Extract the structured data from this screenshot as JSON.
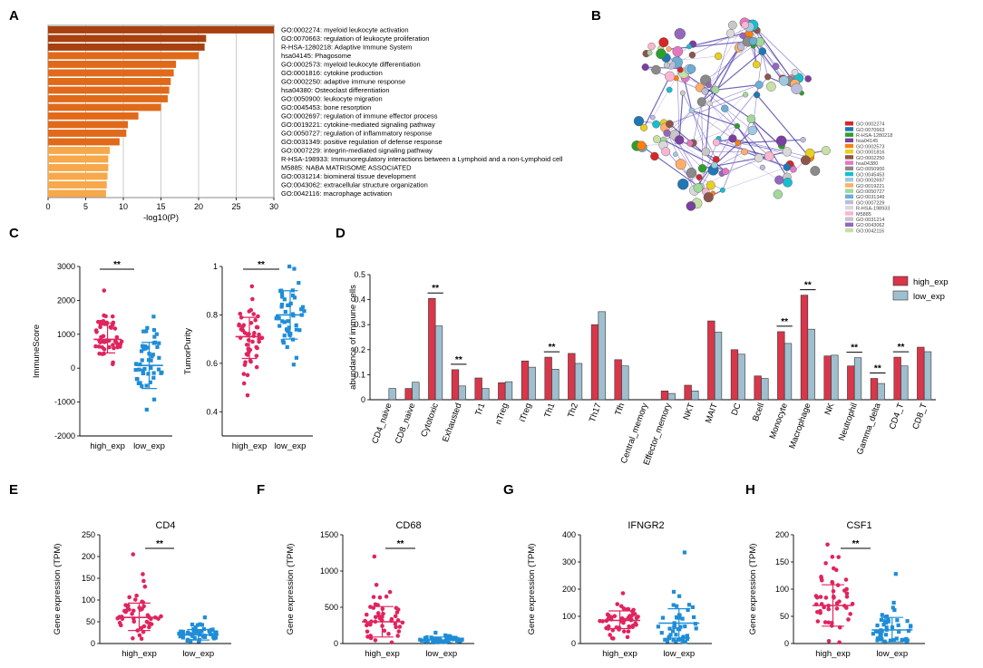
{
  "panels": {
    "A": "A",
    "B": "B",
    "C": "C",
    "D": "D",
    "E": "E",
    "F": "F",
    "G": "G",
    "H": "H"
  },
  "colors": {
    "bar_dark": "#a8400f",
    "bar_mid": "#e06a1a",
    "bar_light": "#f7a84a",
    "high": "#e0245e",
    "low": "#1f8dd6",
    "d_high": "#d9364a",
    "d_low": "#9fbfcf"
  },
  "significance_label": "**",
  "chart_data": [
    {
      "id": "A",
      "type": "bar",
      "orientation": "horizontal",
      "xlabel": "-log10(P)",
      "xlim": [
        0,
        30
      ],
      "xticks": [
        0,
        5,
        10,
        15,
        20,
        25,
        30
      ],
      "categories": [
        "GO:0002274: myeloid leukocyte activation",
        "GO:0070663: regulation of leukocyte proliferation",
        "R-HSA-1280218: Adaptive Immune System",
        "hsa04145: Phagosome",
        "GO:0002573: myeloid leukocyte differentiation",
        "GO:0001816: cytokine production",
        "GO:0002250: adaptive immune response",
        "hsa04380: Osteoclast differentiation",
        "GO:0050900: leukocyte migration",
        "GO:0045453: bone resorption",
        "GO:0002697: regulation of immune effector process",
        "GO:0019221: cytokine-mediated signaling pathway",
        "GO:0050727: regulation of inflammatory response",
        "GO:0031349: positive regulation of defense response",
        "GO:0007229: integrin-mediated signaling pathway",
        "R-HSA-198933: Immunoregulatory interactions between a Lymphoid and a non-Lymphoid cell",
        "M5885: NABA MATRISOME ASSOCIATED",
        "GO:0031214: biomineral tissue development",
        "GO:0043062: extracellular structure organization",
        "GO:0042116: macrophage activation"
      ],
      "values": [
        30,
        21,
        20.8,
        20,
        17,
        16.7,
        16.3,
        16.1,
        15.9,
        15,
        12,
        10.6,
        10.4,
        9.5,
        8.2,
        8.0,
        8.0,
        7.9,
        7.8,
        7.7
      ]
    },
    {
      "id": "B",
      "type": "network",
      "legend": [
        {
          "label": "GO:0002274",
          "color": "#d62728"
        },
        {
          "label": "GO:0070663",
          "color": "#1f77b4"
        },
        {
          "label": "R-HSA-1280218",
          "color": "#2ca02c"
        },
        {
          "label": "hsa04145",
          "color": "#7b3fa0"
        },
        {
          "label": "GO:0002573",
          "color": "#ff7f0e"
        },
        {
          "label": "GO:0001816",
          "color": "#e8d020"
        },
        {
          "label": "GO:0002250",
          "color": "#8c564b"
        },
        {
          "label": "hsa04380",
          "color": "#e377c2"
        },
        {
          "label": "GO:0050900",
          "color": "#8a8a8a"
        },
        {
          "label": "GO:0045453",
          "color": "#17becf"
        },
        {
          "label": "GO:0002697",
          "color": "#9ecae1"
        },
        {
          "label": "GO:0019221",
          "color": "#fdae6b"
        },
        {
          "label": "GO:0050727",
          "color": "#a1d99b"
        },
        {
          "label": "GO:0031349",
          "color": "#6baed6"
        },
        {
          "label": "GO:0007229",
          "color": "#bcbddc"
        },
        {
          "label": "R-HSA-198933",
          "color": "#d9d9d9"
        },
        {
          "label": "M5885",
          "color": "#f7b6d2"
        },
        {
          "label": "GO:0031214",
          "color": "#c7c7c7"
        },
        {
          "label": "GO:0043062",
          "color": "#9467bd"
        },
        {
          "label": "GO:0042116",
          "color": "#c5e1a5"
        }
      ]
    },
    {
      "id": "C1",
      "type": "scatter",
      "ylabel": "ImmuneScore",
      "categories": [
        "high_exp",
        "low_exp"
      ],
      "ylim": [
        -2000,
        3000
      ],
      "yticks": [
        -2000,
        -1000,
        0,
        1000,
        2000,
        3000
      ],
      "means": [
        850,
        80
      ],
      "sd_low": [
        450,
        -600
      ],
      "sd_high": [
        1330,
        760
      ],
      "sig": "**"
    },
    {
      "id": "C2",
      "type": "scatter",
      "ylabel": "TumorPurity",
      "categories": [
        "high_exp",
        "low_exp"
      ],
      "ylim": [
        0.3,
        1.0
      ],
      "yticks": [
        0.4,
        0.6,
        0.8,
        1.0
      ],
      "means": [
        0.71,
        0.8
      ],
      "sd_low": [
        0.62,
        0.7
      ],
      "sd_high": [
        0.79,
        0.9
      ],
      "sig": "**"
    },
    {
      "id": "D",
      "type": "bar",
      "ylabel": "abundance of immune cells",
      "ylim": [
        0,
        0.5
      ],
      "yticks": [
        0,
        0.1,
        0.2,
        0.3,
        0.4,
        0.5
      ],
      "categories": [
        "CD4_naive",
        "CD8_naive",
        "Cytotoxic",
        "Exhausted",
        "Tr1",
        "nTreg",
        "iTreg",
        "Th1",
        "Th2",
        "Th17",
        "Tfh",
        "Central_memory",
        "Effector_memory",
        "NKT",
        "MAIT",
        "DC",
        "Bcell",
        "Monocyte",
        "Macrophage",
        "NK",
        "Neutrophil",
        "Gamma_delta",
        "CD4_T",
        "CD8_T"
      ],
      "series": [
        {
          "name": "high_exp",
          "values": [
            0.0,
            0.045,
            0.405,
            0.12,
            0.087,
            0.068,
            0.155,
            0.17,
            0.185,
            0.3,
            0.16,
            0.0,
            0.035,
            0.058,
            0.315,
            0.2,
            0.095,
            0.272,
            0.418,
            0.175,
            0.135,
            0.085,
            0.17,
            0.21
          ]
        },
        {
          "name": "low_exp",
          "values": [
            0.045,
            0.07,
            0.295,
            0.055,
            0.045,
            0.072,
            0.13,
            0.122,
            0.145,
            0.352,
            0.135,
            0.0,
            0.025,
            0.035,
            0.27,
            0.182,
            0.085,
            0.225,
            0.282,
            0.178,
            0.168,
            0.065,
            0.135,
            0.192
          ]
        }
      ],
      "significant": [
        "Cytotoxic",
        "Exhausted",
        "Th1",
        "Monocyte",
        "Macrophage",
        "Neutrophil",
        "Gamma_delta",
        "CD4_T"
      ],
      "legend_position": "top-right"
    },
    {
      "id": "E",
      "type": "scatter",
      "title": "CD4",
      "ylabel": "Gene expression (TPM)",
      "categories": [
        "high_exp",
        "low_exp"
      ],
      "ylim": [
        0,
        250
      ],
      "yticks": [
        0,
        50,
        100,
        150,
        200,
        250
      ],
      "means": [
        60,
        20
      ],
      "sd_low": [
        30,
        8
      ],
      "sd_high": [
        93,
        32
      ],
      "sig": "**",
      "max_point": [
        205,
        60
      ]
    },
    {
      "id": "F",
      "type": "scatter",
      "title": "CD68",
      "ylabel": "Gene expression (TPM)",
      "categories": [
        "high_exp",
        "low_exp"
      ],
      "ylim": [
        0,
        1500
      ],
      "yticks": [
        0,
        500,
        1000,
        1500
      ],
      "means": [
        300,
        50
      ],
      "sd_low": [
        90,
        10
      ],
      "sd_high": [
        510,
        90
      ],
      "sig": "**",
      "max_point": [
        1200,
        150
      ]
    },
    {
      "id": "G",
      "type": "scatter",
      "title": "IFNGR2",
      "ylabel": "Gene expression (TPM)",
      "categories": [
        "high_exp",
        "low_exp"
      ],
      "ylim": [
        0,
        400
      ],
      "yticks": [
        0,
        100,
        200,
        300,
        400
      ],
      "means": [
        85,
        75
      ],
      "sd_low": [
        55,
        20
      ],
      "sd_high": [
        120,
        128
      ],
      "sig": "",
      "max_point": [
        185,
        335
      ]
    },
    {
      "id": "H",
      "type": "scatter",
      "title": "CSF1",
      "ylabel": "Gene expression (TPM)",
      "categories": [
        "high_exp",
        "low_exp"
      ],
      "ylim": [
        0,
        200
      ],
      "yticks": [
        0,
        50,
        100,
        150,
        200
      ],
      "means": [
        70,
        25
      ],
      "sd_low": [
        32,
        3
      ],
      "sd_high": [
        108,
        48
      ],
      "sig": "**",
      "max_point": [
        182,
        128
      ]
    }
  ]
}
